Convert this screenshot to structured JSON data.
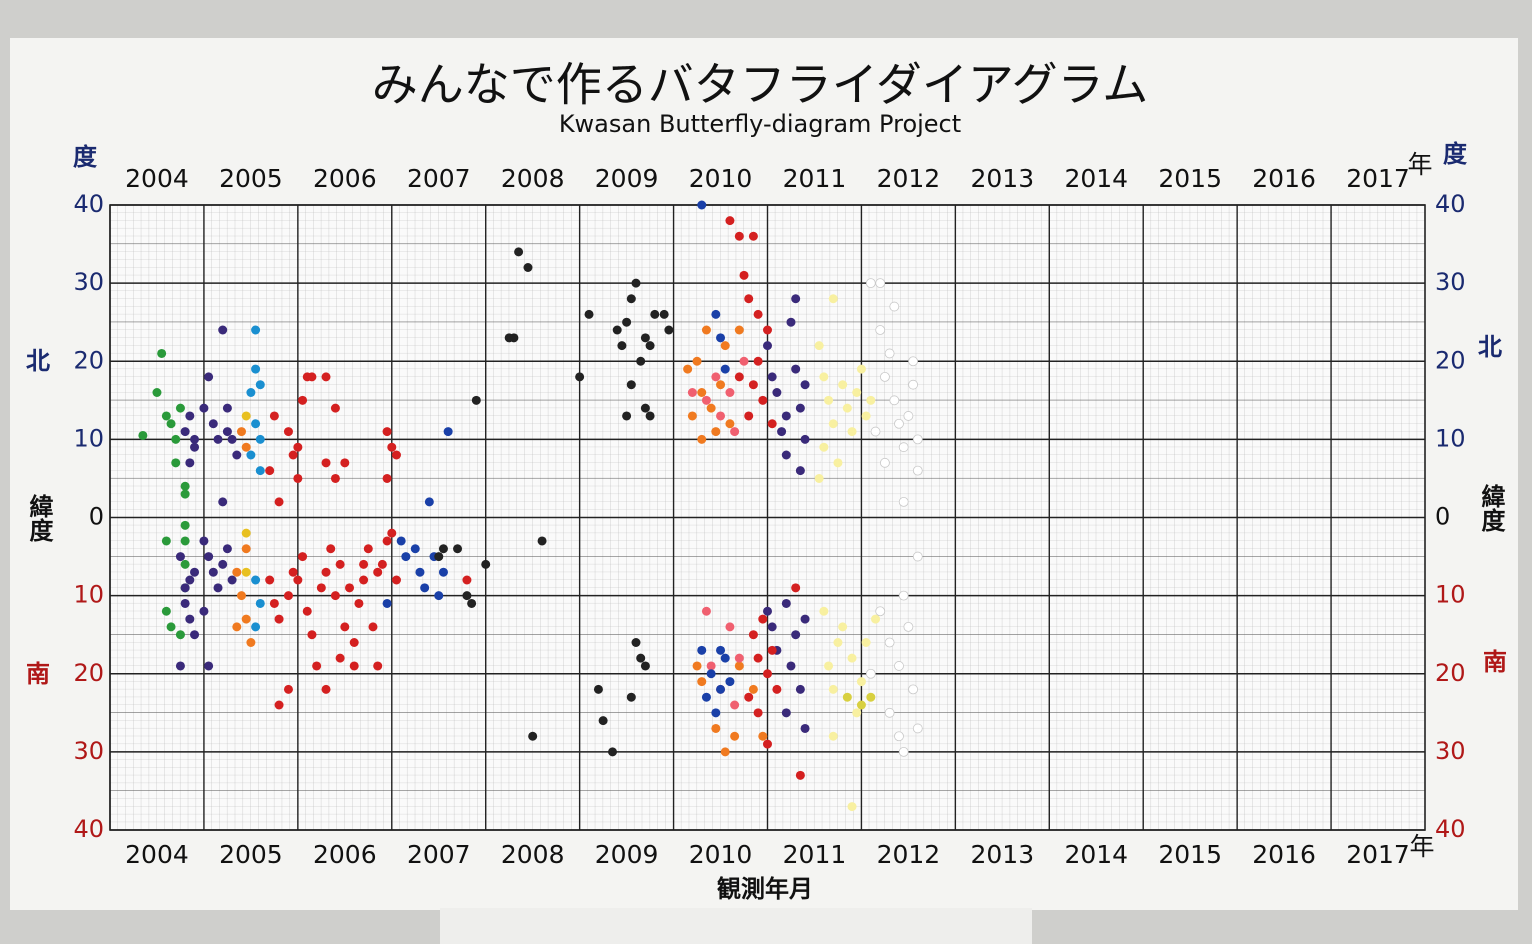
{
  "chart_data": {
    "type": "scatter",
    "title": "みんなで作るバタフライダイアグラム",
    "subtitle": "Kwasan Butterfly-diagram Project",
    "x_label": "観測年月",
    "y_unit": "度",
    "year_unit": "年",
    "north_label": "北",
    "south_label": "南",
    "latitude_label": "緯度",
    "xlim": [
      2004,
      2018
    ],
    "ylim": [
      -40,
      40
    ],
    "xticks": [
      2004,
      2005,
      2006,
      2007,
      2008,
      2009,
      2010,
      2011,
      2012,
      2013,
      2014,
      2015,
      2016,
      2017
    ],
    "yticks": [
      40,
      30,
      20,
      10,
      0,
      {
        "value": -10,
        "label": "10"
      },
      {
        "value": -20,
        "label": "20"
      },
      {
        "value": -30,
        "label": "30"
      },
      {
        "value": -40,
        "label": "40"
      }
    ],
    "grid": true,
    "series": [
      {
        "color": "#2a9a3a",
        "x": [
          2004.35,
          2004.5,
          2004.55,
          2004.6,
          2004.65,
          2004.7,
          2004.75,
          2004.7,
          2004.8,
          2004.8,
          2004.8,
          2004.8,
          2004.8,
          2004.8,
          2004.6,
          2004.6,
          2004.65,
          2004.75
        ],
        "values": [
          10.5,
          16,
          21,
          13,
          12,
          10,
          14,
          7,
          4,
          3,
          -1,
          -3,
          -6,
          -9,
          -3,
          -12,
          -14,
          -15
        ]
      },
      {
        "color": "#3a2a7a",
        "x": [
          2004.8,
          2004.85,
          2004.9,
          2004.85,
          2004.9,
          2005.0,
          2005.05,
          2005.1,
          2005.15,
          2005.2,
          2005.25,
          2005.3,
          2005.25,
          2005.35,
          2005.2,
          2004.75,
          2004.8,
          2004.85,
          2004.8,
          2004.9,
          2004.85,
          2004.75,
          2004.9,
          2005.0,
          2005.05,
          2005.1,
          2005.15,
          2005.0,
          2005.05,
          2005.2,
          2005.3,
          2005.25,
          2011.0,
          2011.05,
          2011.1,
          2011.2,
          2011.25,
          2011.3,
          2011.35,
          2011.4,
          2011.2,
          2011.35,
          2011.15,
          2011.4,
          2011.3,
          2011.0,
          2011.05,
          2011.1,
          2011.2,
          2011.25,
          2011.3,
          2011.35,
          2011.4,
          2011.2,
          2011.4
        ],
        "values": [
          11,
          13,
          10,
          7,
          9,
          14,
          18,
          12,
          10,
          24,
          11,
          10,
          14,
          8,
          2,
          -5,
          -9,
          -8,
          -11,
          -7,
          -13,
          -19,
          -15,
          -3,
          -5,
          -7,
          -9,
          -12,
          -19,
          -6,
          -8,
          -4,
          22,
          18,
          16,
          13,
          25,
          19,
          14,
          10,
          8,
          6,
          11,
          17,
          28,
          -12,
          -14,
          -17,
          -11,
          -19,
          -15,
          -22,
          -27,
          -25,
          -13
        ]
      },
      {
        "color": "#1a8fd0",
        "x": [
          2005.55,
          2005.55,
          2005.5,
          2005.6,
          2005.55,
          2005.6,
          2005.5,
          2005.6,
          2005.55,
          2005.6,
          2005.55
        ],
        "values": [
          24,
          19,
          16,
          17,
          12,
          10,
          8,
          6,
          -8,
          -11,
          -14
        ]
      },
      {
        "color": "#e8c020",
        "x": [
          2005.45,
          2005.45,
          2005.45
        ],
        "values": [
          13,
          -2,
          -7
        ]
      },
      {
        "color": "#f07a20",
        "x": [
          2005.4,
          2005.45,
          2005.35,
          2005.4,
          2005.45,
          2005.35,
          2005.5,
          2005.45,
          2010.25,
          2010.3,
          2010.35,
          2010.4,
          2010.45,
          2010.3,
          2010.5,
          2010.55,
          2010.6,
          2010.15,
          2010.2,
          2010.7,
          2010.25,
          2010.3,
          2010.45,
          2010.55,
          2010.65,
          2010.7,
          2010.85,
          2010.95
        ],
        "values": [
          11,
          9,
          -7,
          -10,
          -13,
          -14,
          -16,
          -4,
          20,
          16,
          24,
          14,
          11,
          10,
          17,
          22,
          12,
          19,
          13,
          24,
          -19,
          -21,
          -27,
          -30,
          -28,
          -19,
          -22,
          -28
        ]
      },
      {
        "color": "#d42020",
        "x": [
          2005.75,
          2005.9,
          2005.95,
          2006.0,
          2006.05,
          2006.1,
          2006.15,
          2006.3,
          2006.4,
          2006.3,
          2006.4,
          2006.5,
          2005.7,
          2006.0,
          2005.8,
          2006.95,
          2007.0,
          2007.05,
          2006.95,
          2005.7,
          2005.75,
          2005.8,
          2005.9,
          2005.95,
          2006.0,
          2006.05,
          2006.1,
          2006.15,
          2006.2,
          2006.25,
          2006.3,
          2006.35,
          2006.4,
          2006.45,
          2006.5,
          2006.55,
          2006.6,
          2006.65,
          2006.7,
          2006.75,
          2006.8,
          2006.85,
          2006.9,
          2006.95,
          2007.0,
          2007.05,
          2006.6,
          2006.7,
          2005.8,
          2005.9,
          2006.3,
          2006.45,
          2006.85,
          2007.8,
          2010.8,
          2010.85,
          2010.9,
          2011.0,
          2010.95,
          2010.8,
          2010.75,
          2010.9,
          2010.6,
          2010.7,
          2010.85,
          2011.05,
          2010.7,
          2010.85,
          2010.9,
          2010.95,
          2011.0,
          2011.05,
          2011.1,
          2010.8,
          2010.9,
          2011.3,
          2011.35,
          2011.0
        ],
        "values": [
          13,
          11,
          8,
          9,
          15,
          18,
          18,
          18,
          14,
          7,
          5,
          7,
          6,
          5,
          2,
          11,
          9,
          8,
          5,
          -8,
          -11,
          -13,
          -10,
          -7,
          -8,
          -5,
          -12,
          -15,
          -19,
          -9,
          -7,
          -4,
          -10,
          -6,
          -14,
          -9,
          -16,
          -11,
          -8,
          -4,
          -14,
          -7,
          -6,
          -3,
          -2,
          -8,
          -19,
          -6,
          -24,
          -22,
          -22,
          -18,
          -19,
          -8,
          13,
          17,
          20,
          24,
          15,
          28,
          31,
          26,
          38,
          36,
          36,
          12,
          18,
          -15,
          -18,
          -13,
          -20,
          -17,
          -22,
          -23,
          -25,
          -9,
          -33,
          -29
        ]
      },
      {
        "color": "#f06070",
        "x": [
          2010.2,
          2010.35,
          2010.45,
          2010.5,
          2010.6,
          2010.65,
          2010.75,
          2010.4,
          2010.5,
          2010.6,
          2010.7,
          2010.65,
          2010.35
        ],
        "values": [
          16,
          15,
          18,
          13,
          16,
          11,
          20,
          -19,
          -22,
          -14,
          -18,
          -24,
          -12
        ]
      },
      {
        "color": "#1a40a8",
        "x": [
          2007.1,
          2007.15,
          2007.25,
          2007.3,
          2007.35,
          2007.45,
          2007.5,
          2007.55,
          2006.95,
          2007.4,
          2007.6,
          2010.3,
          2010.5,
          2010.55,
          2010.45,
          2010.5,
          2010.4,
          2010.35,
          2010.45,
          2010.5,
          2010.55,
          2010.6,
          2010.3
        ],
        "values": [
          -3,
          -5,
          -4,
          -7,
          -9,
          -5,
          -10,
          -7,
          -11,
          2,
          11,
          40,
          23,
          19,
          26,
          -17,
          -20,
          -23,
          -25,
          -22,
          -18,
          -21,
          -17
        ]
      },
      {
        "color": "#222222",
        "x": [
          2007.5,
          2007.55,
          2007.7,
          2007.8,
          2007.85,
          2008.0,
          2007.9,
          2008.25,
          2008.3,
          2008.35,
          2008.45,
          2008.6,
          2008.5,
          2009.0,
          2009.1,
          2009.2,
          2009.25,
          2009.35,
          2009.4,
          2009.45,
          2009.5,
          2009.55,
          2009.6,
          2009.5,
          2009.55,
          2009.65,
          2009.7,
          2009.75,
          2009.8,
          2009.7,
          2009.75,
          2009.9,
          2009.95,
          2009.6,
          2009.65,
          2009.55,
          2009.7
        ],
        "values": [
          -5,
          -4,
          -4,
          -10,
          -11,
          -6,
          15,
          23,
          23,
          34,
          32,
          -3,
          -28,
          18,
          26,
          -22,
          -26,
          -30,
          24,
          22,
          25,
          28,
          30,
          13,
          17,
          20,
          23,
          22,
          26,
          14,
          13,
          26,
          24,
          -16,
          -18,
          -23,
          -19
        ]
      },
      {
        "color": "#f8f0a0",
        "x": [
          2011.55,
          2011.6,
          2011.65,
          2011.7,
          2011.6,
          2011.55,
          2011.7,
          2011.8,
          2011.85,
          2011.9,
          2011.95,
          2012.0,
          2012.05,
          2011.75,
          2012.1,
          2011.6,
          2011.65,
          2011.7,
          2011.7,
          2011.75,
          2011.8,
          2011.9,
          2011.95,
          2012.05,
          2012.0,
          2012.15,
          2011.9
        ],
        "values": [
          22,
          18,
          15,
          12,
          9,
          5,
          28,
          17,
          14,
          11,
          16,
          19,
          13,
          7,
          15,
          -12,
          -19,
          -22,
          -28,
          -16,
          -14,
          -18,
          -25,
          -16,
          -21,
          -13,
          -37
        ]
      },
      {
        "color": "#d8d040",
        "x": [
          2011.85,
          2012.0,
          2012.1
        ],
        "values": [
          -23,
          -24,
          -23
        ]
      },
      {
        "color": "#ffffff",
        "x": [
          2012.1,
          2012.2,
          2012.35,
          2012.2,
          2012.25,
          2012.3,
          2012.35,
          2012.4,
          2012.45,
          2012.5,
          2012.55,
          2012.6,
          2012.55,
          2012.45,
          2012.6,
          2012.15,
          2012.25,
          2012.2,
          2012.3,
          2012.4,
          2012.45,
          2012.5,
          2012.55,
          2012.6,
          2012.3,
          2012.4,
          2012.45,
          2012.6,
          2012.1
        ],
        "values": [
          30,
          30,
          27,
          24,
          18,
          21,
          15,
          12,
          9,
          13,
          17,
          6,
          20,
          2,
          10,
          11,
          7,
          -12,
          -16,
          -19,
          -10,
          -14,
          -22,
          -5,
          -25,
          -28,
          -30,
          -27,
          -20
        ]
      }
    ]
  }
}
